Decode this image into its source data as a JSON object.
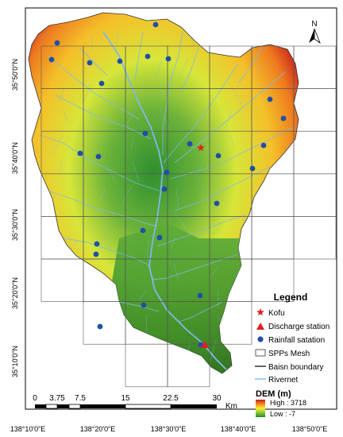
{
  "map": {
    "lat_labels": [
      "35°50'0\"N",
      "35°40'0\"N",
      "35°30'0\"N",
      "35°20'0\"N",
      "35°10'0\"N"
    ],
    "lon_labels": [
      "138°10'0\"E",
      "138°20'0\"E",
      "138°30'0\"E",
      "138°40'0\"E",
      "138°50'0\"E"
    ]
  },
  "north_arrow": {
    "label": "N"
  },
  "scale_bar": {
    "ticks": [
      "0",
      "3.75",
      "7.5",
      "15",
      "22.5",
      "30"
    ],
    "unit": "Km"
  },
  "legend": {
    "title": "Legend",
    "items": [
      {
        "label": "Kofu",
        "symbol": "red-star"
      },
      {
        "label": "Discharge station",
        "symbol": "red-triangle"
      },
      {
        "label": "Rainfall satation",
        "symbol": "blue-dot"
      },
      {
        "label": "SPPs Mesh",
        "symbol": "grid-square"
      },
      {
        "label": "Baisn boundary",
        "symbol": "dark-line"
      },
      {
        "label": "Rivernet",
        "symbol": "blue-line"
      }
    ],
    "dem_title": "DEM (m)",
    "dem_high": "High : 3718",
    "dem_low": "Low : -7",
    "dem_colors": [
      "#c81e1e",
      "#f08a1e",
      "#f6ef2e",
      "#8fc43a",
      "#1f8a1f"
    ]
  },
  "colors": {
    "river": "#7fb8e6",
    "rain_station": "#1f4fa8",
    "kofu": "#e02020",
    "discharge": "#e02020",
    "mesh": "#555555"
  }
}
